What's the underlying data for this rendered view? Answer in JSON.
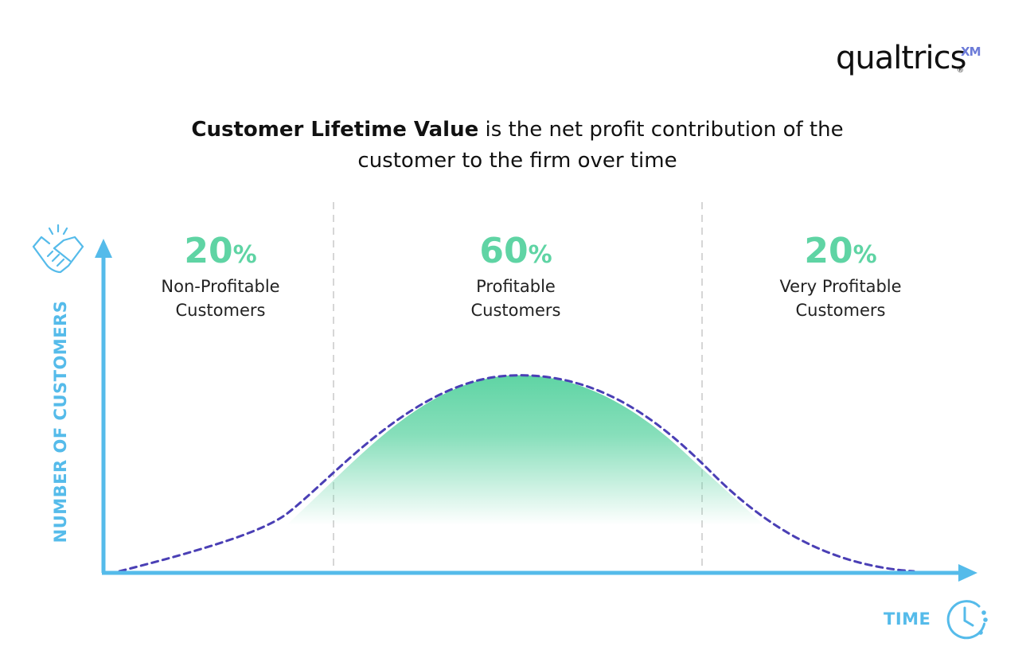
{
  "logo": {
    "name": "qualtrics",
    "mark": "XM",
    "reg": "®"
  },
  "headline": {
    "bold": "Customer Lifetime Value",
    "rest_line1": " is the net profit contribution of the",
    "line2": "customer to the firm over time"
  },
  "segments": [
    {
      "value": "20",
      "unit": "%",
      "label_line1": "Non-Profitable",
      "label_line2": "Customers"
    },
    {
      "value": "60",
      "unit": "%",
      "label_line1": "Profitable",
      "label_line2": "Customers"
    },
    {
      "value": "20",
      "unit": "%",
      "label_line1": "Very Profitable",
      "label_line2": "Customers"
    }
  ],
  "axes": {
    "y_label": "NUMBER OF CUSTOMERS",
    "x_label": "TIME"
  },
  "icons": {
    "y_axis_icon": "handshake-icon",
    "x_axis_icon": "clock-icon"
  },
  "colors": {
    "axis": "#55bbea",
    "accent_green": "#5fd4a4",
    "curve": "#4a3fb5",
    "logo_xm": "#6c7bd8",
    "text": "#111111"
  }
}
